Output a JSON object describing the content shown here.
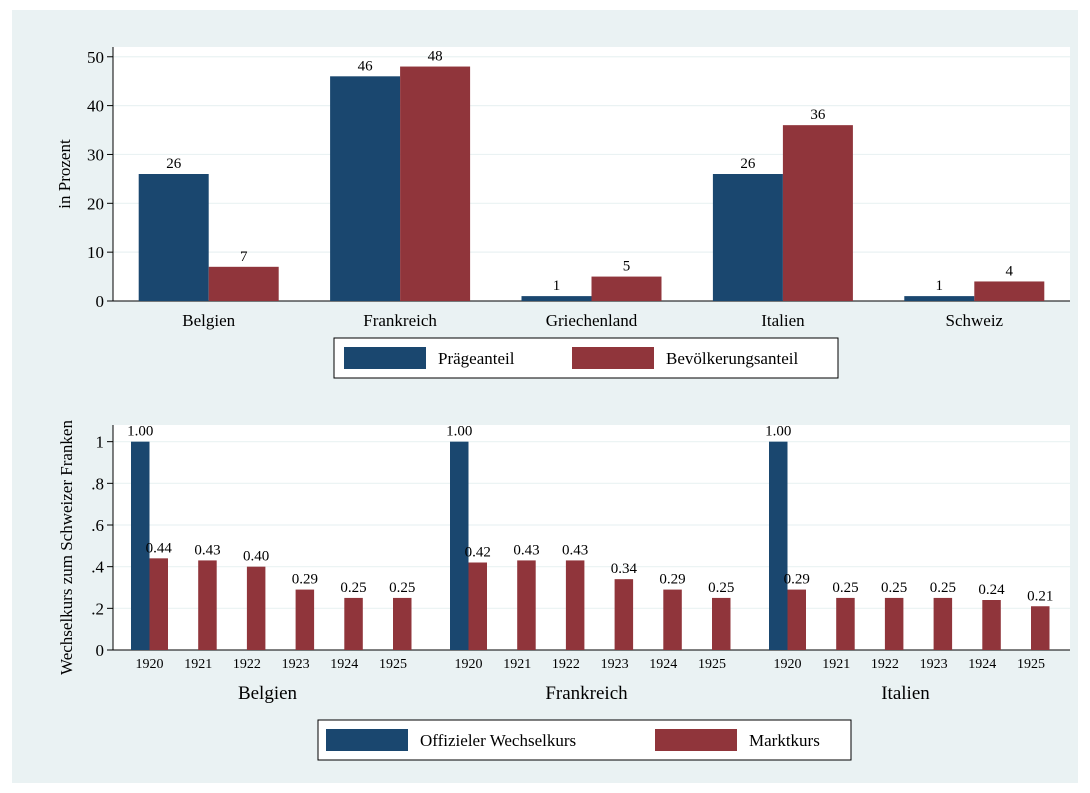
{
  "colors": {
    "background": "#eaf2f3",
    "plot_bg": "#ffffff",
    "series1": "#1a476f",
    "series2": "#90353b",
    "grid": "#eaf2f3"
  },
  "chart_data": [
    {
      "type": "bar",
      "ylabel": "in Prozent",
      "ylim": [
        0,
        52
      ],
      "yticks": [
        "0",
        "10",
        "20",
        "30",
        "40",
        "50"
      ],
      "ytick_values": [
        0,
        10,
        20,
        30,
        40,
        50
      ],
      "grid": true,
      "legend_position": "bottom",
      "categories": [
        "Belgien",
        "Frankreich",
        "Griechenland",
        "Italien",
        "Schweiz"
      ],
      "series": [
        {
          "name": "Prägeanteil",
          "values": [
            26,
            46,
            1,
            26,
            1
          ],
          "labels": [
            "26",
            "46",
            "1",
            "26",
            "1"
          ]
        },
        {
          "name": "Bevölkerungsanteil",
          "values": [
            7,
            48,
            5,
            36,
            4
          ],
          "labels": [
            "7",
            "48",
            "5",
            "36",
            "4"
          ]
        }
      ]
    },
    {
      "type": "bar",
      "ylabel": "Wechselkurs zum Schweizer Franken",
      "ylim": [
        0,
        1.08
      ],
      "yticks": [
        "0",
        ".2",
        ".4",
        ".6",
        ".8",
        "1"
      ],
      "ytick_values": [
        0,
        0.2,
        0.4,
        0.6,
        0.8,
        1.0
      ],
      "grid": true,
      "legend_position": "bottom",
      "groups": [
        "Belgien",
        "Frankreich",
        "Italien"
      ],
      "years": [
        "1920",
        "1921",
        "1922",
        "1923",
        "1924",
        "1925"
      ],
      "series": [
        {
          "name": "Offizieler Wechselkurs",
          "values": [
            [
              1.0
            ],
            [
              1.0
            ],
            [
              1.0
            ]
          ],
          "labels": [
            [
              "1.00"
            ],
            [
              "1.00"
            ],
            [
              "1.00"
            ]
          ]
        },
        {
          "name": "Marktkurs",
          "values": [
            [
              0.44,
              0.43,
              0.4,
              0.29,
              0.25,
              0.25
            ],
            [
              0.42,
              0.43,
              0.43,
              0.34,
              0.29,
              0.25
            ],
            [
              0.29,
              0.25,
              0.25,
              0.25,
              0.24,
              0.21
            ]
          ],
          "labels": [
            [
              "0.44",
              "0.43",
              "0.40",
              "0.29",
              "0.25",
              "0.25"
            ],
            [
              "0.42",
              "0.43",
              "0.43",
              "0.34",
              "0.29",
              "0.25"
            ],
            [
              "0.29",
              "0.25",
              "0.25",
              "0.25",
              "0.24",
              "0.21"
            ]
          ]
        }
      ]
    }
  ]
}
